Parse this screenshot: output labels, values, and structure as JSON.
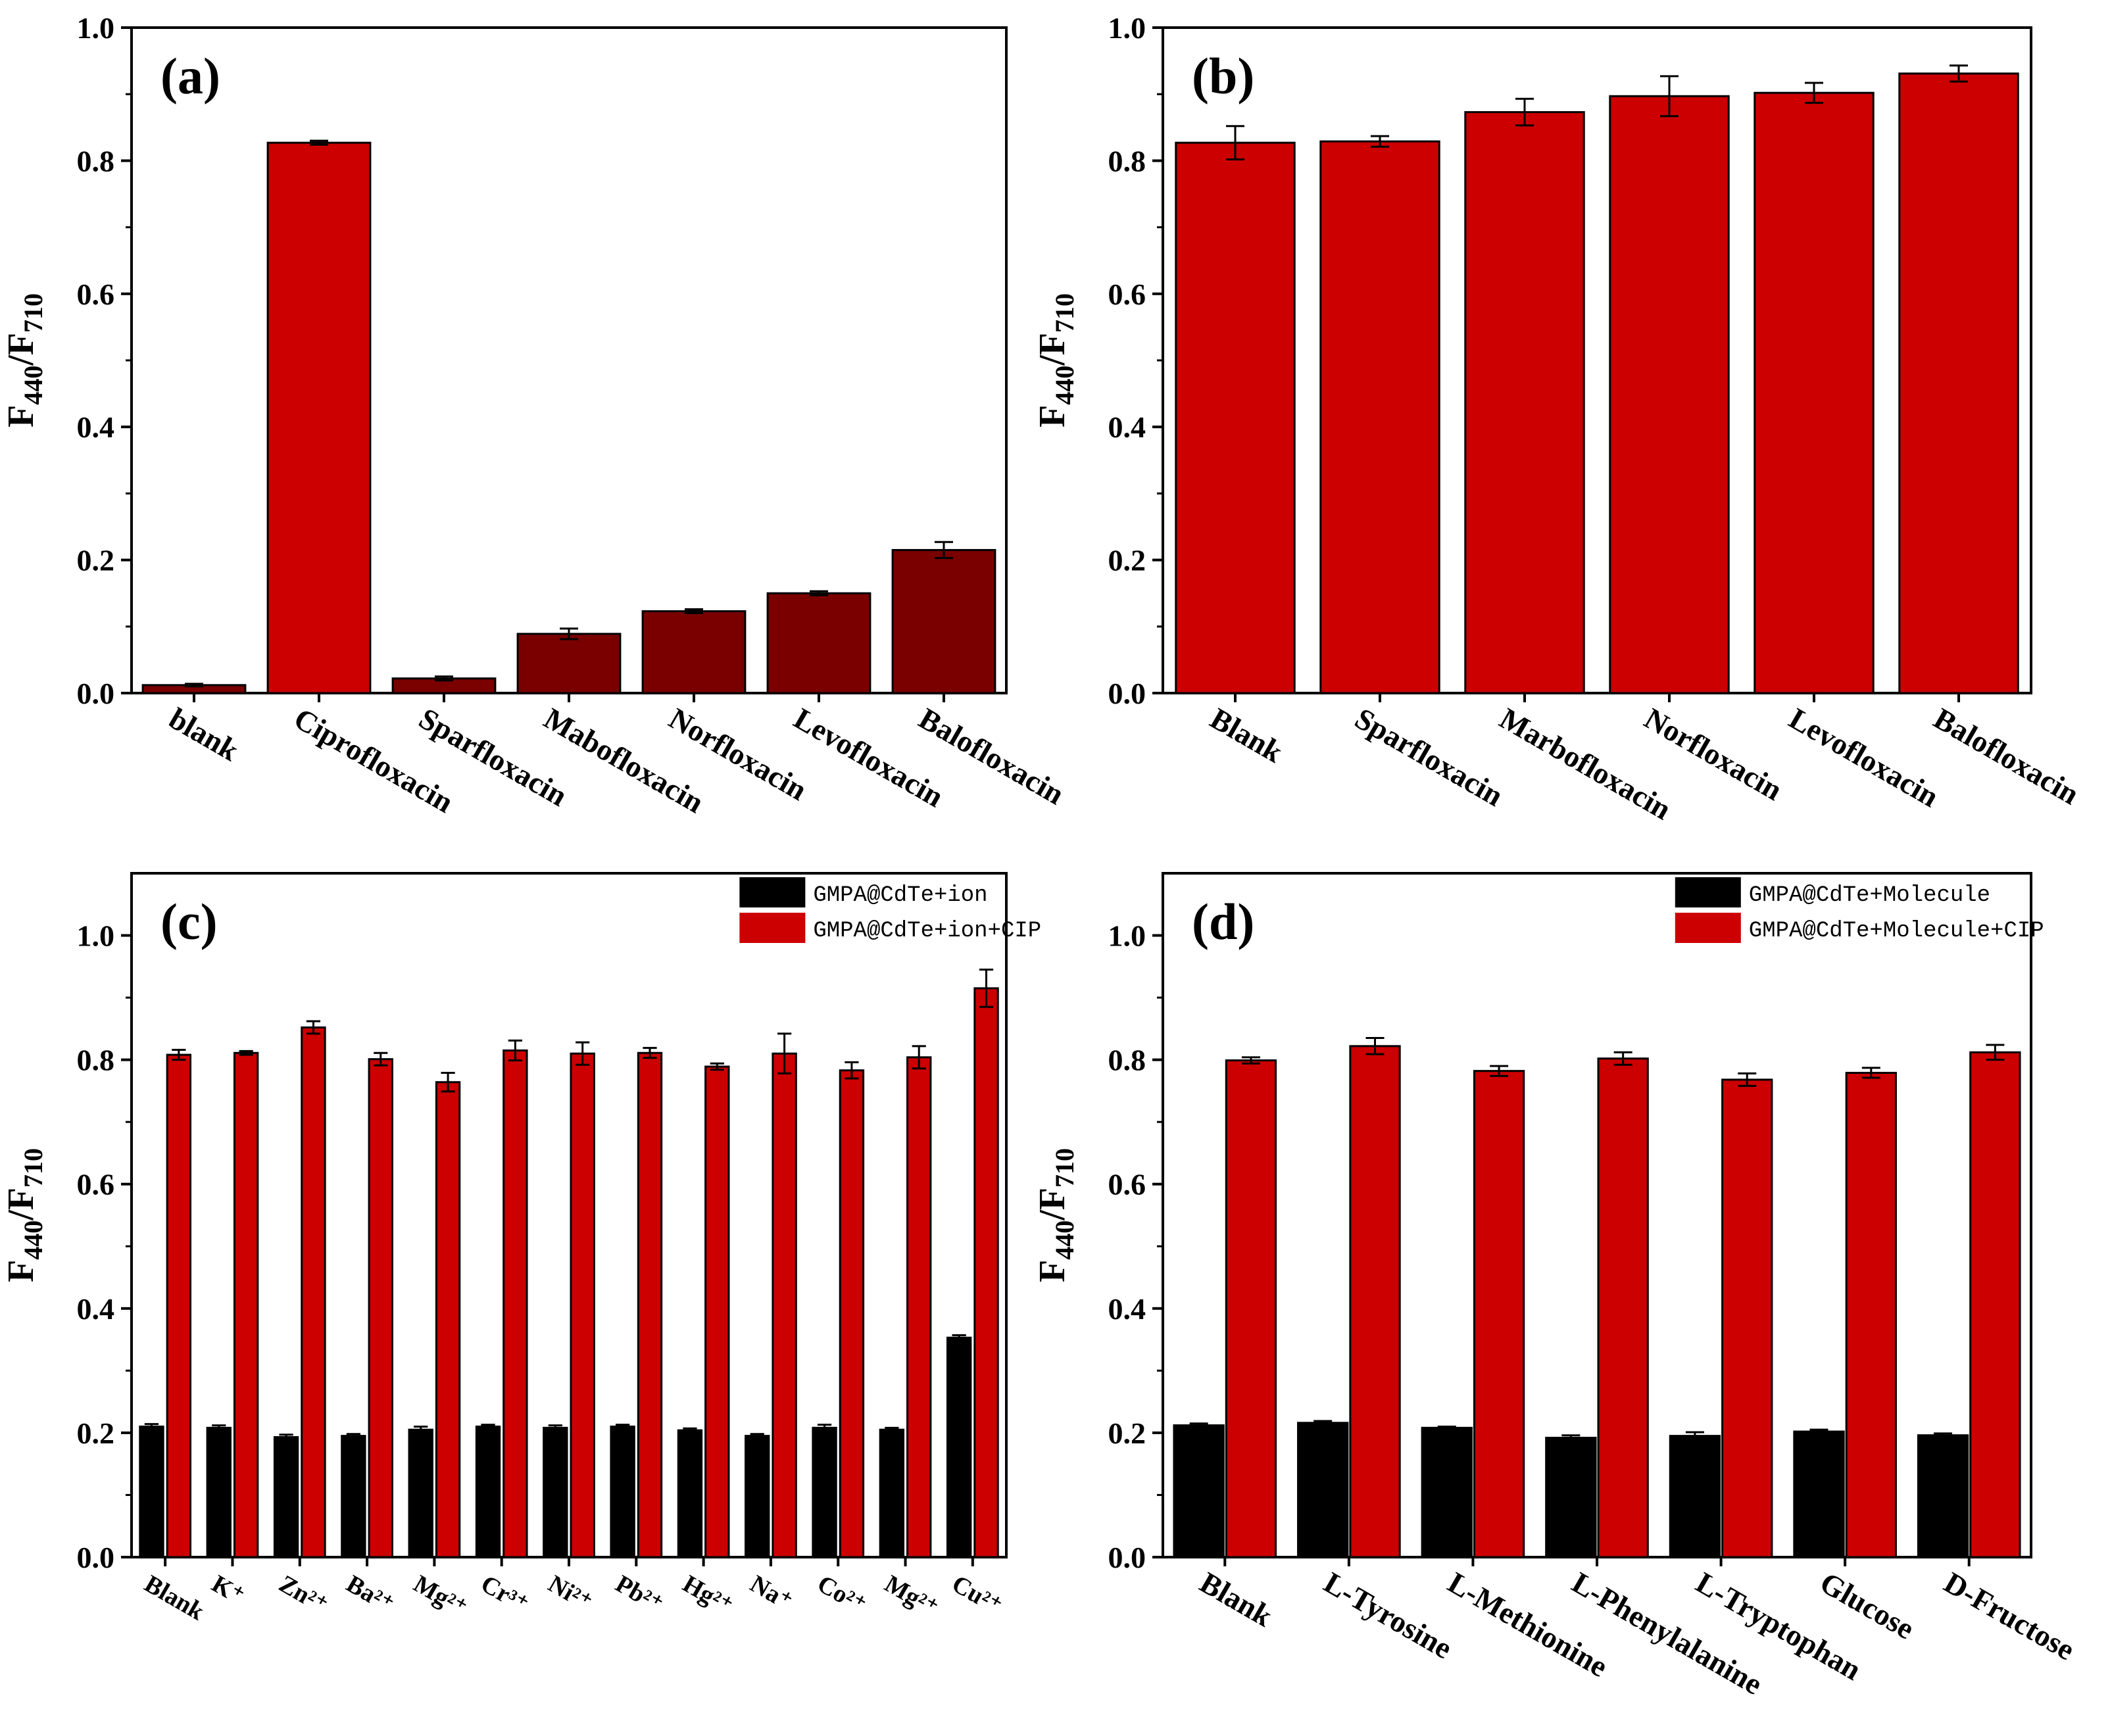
{
  "colors": {
    "dark_red": "#7a0000",
    "red": "#cc0000",
    "black": "#000000"
  },
  "chart_data": [
    {
      "id": "a",
      "type": "bar",
      "panel_label": "(a)",
      "ylabel": {
        "main": "F",
        "sub1": "440",
        "slash": "/F",
        "sub2": "710"
      },
      "ylim": [
        0,
        1.0
      ],
      "yticks": [
        "0.0",
        "0.2",
        "0.4",
        "0.6",
        "0.8",
        "1.0"
      ],
      "categories": [
        "blank",
        "Ciprofloxacin",
        "Sparfloxacin",
        "Mabofloxacin",
        "Norfloxacin",
        "Levofloxacin",
        "Balofloxacin"
      ],
      "series": [
        {
          "name": "",
          "color_key": "mixed",
          "colors": [
            "dark_red",
            "red",
            "dark_red",
            "dark_red",
            "dark_red",
            "dark_red",
            "dark_red"
          ],
          "values": [
            0.012,
            0.827,
            0.022,
            0.089,
            0.123,
            0.15,
            0.215
          ],
          "errors": [
            0.002,
            0.003,
            0.003,
            0.008,
            0.003,
            0.003,
            0.012
          ]
        }
      ],
      "legend": []
    },
    {
      "id": "b",
      "type": "bar",
      "panel_label": "(b)",
      "ylabel": {
        "main": "F",
        "sub1": "440",
        "slash": "/F",
        "sub2": "710"
      },
      "ylim": [
        0,
        1.0
      ],
      "yticks": [
        "0.0",
        "0.2",
        "0.4",
        "0.6",
        "0.8",
        "1.0"
      ],
      "categories": [
        "Blank",
        "Sparfloxacin",
        "Marbofloxacin",
        "Norfloxacin",
        "Levofloxacin",
        "Balofloxacin"
      ],
      "series": [
        {
          "name": "",
          "color_key": "red",
          "values": [
            0.827,
            0.829,
            0.873,
            0.897,
            0.902,
            0.931
          ],
          "errors": [
            0.025,
            0.008,
            0.02,
            0.03,
            0.015,
            0.012
          ]
        }
      ],
      "legend": []
    },
    {
      "id": "c",
      "type": "bar",
      "panel_label": "(c)",
      "ylabel": {
        "main": "F",
        "sub1": "440",
        "slash": "/F",
        "sub2": "710"
      },
      "ylim": [
        0,
        1.1
      ],
      "yticks": [
        "0.0",
        "0.2",
        "0.4",
        "0.6",
        "0.8",
        "1.0"
      ],
      "categories": [
        "Blank",
        "K⁺",
        "Zn²⁺",
        "Ba²⁺",
        "Mg²⁺",
        "Cr³⁺",
        "Ni²⁺",
        "Pb²⁺",
        "Hg²⁺",
        "Na⁺",
        "Co²⁺",
        "Mg²⁺",
        "Cu²⁺"
      ],
      "series": [
        {
          "name": "GMPA@CdTe+ion",
          "color_key": "black",
          "values": [
            0.21,
            0.208,
            0.193,
            0.195,
            0.205,
            0.21,
            0.208,
            0.21,
            0.204,
            0.195,
            0.208,
            0.205,
            0.353
          ],
          "errors": [
            0.004,
            0.004,
            0.004,
            0.003,
            0.005,
            0.003,
            0.004,
            0.003,
            0.003,
            0.003,
            0.005,
            0.003,
            0.004
          ]
        },
        {
          "name": "GMPA@CdTe+ion+CIP",
          "color_key": "red",
          "values": [
            0.808,
            0.811,
            0.852,
            0.801,
            0.764,
            0.815,
            0.81,
            0.811,
            0.789,
            0.81,
            0.783,
            0.804,
            0.915
          ],
          "errors": [
            0.008,
            0.003,
            0.01,
            0.01,
            0.015,
            0.016,
            0.018,
            0.008,
            0.005,
            0.032,
            0.013,
            0.018,
            0.03
          ]
        }
      ],
      "legend": [
        "GMPA@CdTe+ion",
        "GMPA@CdTe+ion+CIP"
      ]
    },
    {
      "id": "d",
      "type": "bar",
      "panel_label": "(d)",
      "ylabel": {
        "main": "F",
        "sub1": "440",
        "slash": "/F",
        "sub2": "710"
      },
      "ylim": [
        0,
        1.1
      ],
      "yticks": [
        "0.0",
        "0.2",
        "0.4",
        "0.6",
        "0.8",
        "1.0"
      ],
      "categories": [
        "Blank",
        "L-Tyrosine",
        "L-Methionine",
        "L-Phenylalanine",
        "L-Tryptophan",
        "Glucose",
        "D-Fructose"
      ],
      "series": [
        {
          "name": "GMPA@CdTe+Molecule",
          "color_key": "black",
          "values": [
            0.212,
            0.216,
            0.208,
            0.192,
            0.195,
            0.202,
            0.196
          ],
          "errors": [
            0.003,
            0.003,
            0.002,
            0.004,
            0.006,
            0.003,
            0.003
          ]
        },
        {
          "name": "GMPA@CdTe+Molecule+CIP",
          "color_key": "red",
          "values": [
            0.799,
            0.822,
            0.782,
            0.802,
            0.768,
            0.779,
            0.812
          ],
          "errors": [
            0.005,
            0.013,
            0.008,
            0.01,
            0.01,
            0.008,
            0.012
          ]
        }
      ],
      "legend": [
        "GMPA@CdTe+Molecule",
        "GMPA@CdTe+Molecule+CIP"
      ]
    }
  ]
}
